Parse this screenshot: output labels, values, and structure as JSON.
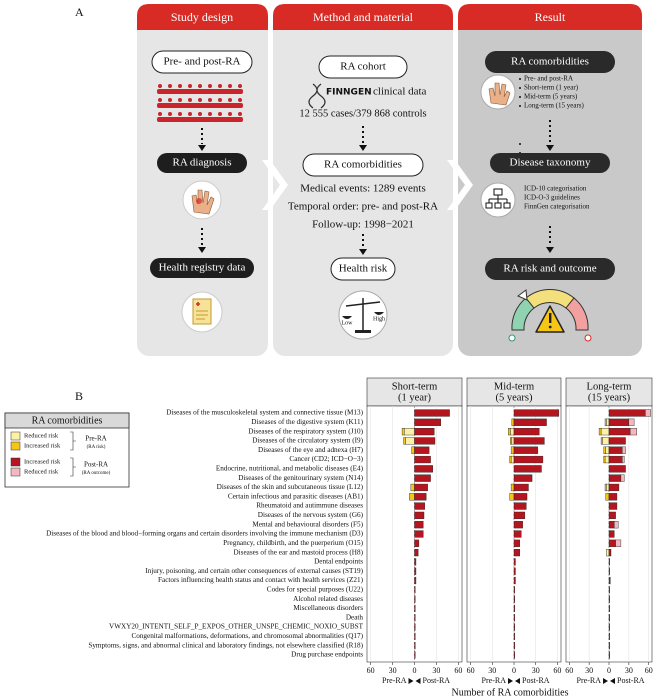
{
  "diagram": {
    "label": "A",
    "study_design": {
      "header": "Study design",
      "steps": [
        "Pre- and post-RA",
        "RA diagnosis",
        "Health registry data"
      ]
    },
    "method": {
      "header": "Method and material",
      "cohort": "RA cohort",
      "finngen": "FINNGEN",
      "source": "clinical data",
      "counts": "12 555 cases/379 868 controls",
      "comorbidities": "RA comorbidities",
      "details": [
        "Medical events: 1289 events",
        "Temporal order: pre- and post-RA",
        "Follow-up: 1998−2021"
      ],
      "risk": "Health risk",
      "scale": [
        "Low",
        "High"
      ]
    },
    "result": {
      "header": "Result",
      "comorbidities": "RA comorbidities",
      "periods": [
        "Pre- and post-RA",
        "Short-term (1 year)",
        "Mid-term (5 years)",
        "Long-term (15 years)"
      ],
      "taxonomy": "Disease taxonomy",
      "sources": [
        "ICD-10 categorisation",
        "ICD-O-3 guidelines",
        "FinnGen categorisation"
      ],
      "outcome": "RA risk and outcome"
    }
  },
  "chart_data": {
    "type": "bar",
    "label": "B",
    "orientation": "horizontal",
    "xlabel": "Number of RA comorbidities",
    "direction_labels": [
      "Pre-RA",
      "Post-RA"
    ],
    "xlim": [
      -65,
      65
    ],
    "xticks": [
      {
        "value": -60,
        "label": "60"
      },
      {
        "value": -30,
        "label": "30"
      },
      0,
      30,
      60
    ],
    "grid": true,
    "categories": [
      "Diseases of the musculoskeletal system and connective tissue (M13)",
      "Diseases of the digestive system (K11)",
      "Diseases of the respiratory system (J10)",
      "Diseases of the circulatory system (I9)",
      "Diseases of the eye and adnexa (H7)",
      "Cancer (CD2; ICD−O−3)",
      "Endocrine, nutritional, and metabolic diseases (E4)",
      "Diseases of the genitourinary system (N14)",
      "Diseases of the skin and subcutaneous tissue (L12)",
      "Certain infectious and parasitic diseases (AB1)",
      "Rheumatoid and autimmune diseases",
      "Diseases of the nervous system (G6)",
      "Mental and behavioural disorders (F5)",
      "Diseases of the blood and blood−forming organs and certain disorders involving the immune mechanism (D3)",
      "Pregnancy, childbirth, and the puerperium (O15)",
      "Diseases of the ear and mastoid process (H8)",
      "Dental endpoints",
      "Injury, poisoning, and certain other consequences of external causes (ST19)",
      "Factors influencing health status and contact with health services (Z21)",
      "Codes for special purposes (U22)",
      "Alcohol related diseases",
      "Miscellaneous disorders",
      "Death",
      "VWXY20_INTENTI_SELF_P_EXPOS_OTHER_UNSPE_CHEMIC_NOXIO_SUBST",
      "Congenital malformations, deformations, and chromosomal abnormalities (Q17)",
      "Symptoms, signs, and abnormal clinical and laboratory findings, not elsewhere classified (R18)",
      "Drug purchase endpoints"
    ],
    "legend": {
      "title": "RA comorbidities",
      "groups": [
        {
          "name": "Pre-RA",
          "note": "(RA risk)"
        },
        {
          "name": "Post-RA",
          "note": "(RA outcome)"
        }
      ]
    },
    "series": [
      {
        "name": "Reduced risk",
        "group": 0,
        "color": "#fdf0a8"
      },
      {
        "name": "Increased risk",
        "group": 0,
        "color": "#f5c518"
      },
      {
        "name": "Increased risk",
        "group": 1,
        "color": "#b5151e"
      },
      {
        "name": "Reduced risk",
        "group": 1,
        "color": "#f2b8c0"
      }
    ],
    "facets": [
      {
        "title": "Short-term",
        "subtitle": "(1 year)",
        "series_values": [
          [
            0,
            0,
            -14,
            -12,
            0,
            0,
            0,
            0,
            0,
            0,
            0,
            0,
            0,
            0,
            0,
            0,
            0,
            0,
            0,
            0,
            0,
            0,
            0,
            0,
            0,
            0,
            0
          ],
          [
            0,
            0,
            -3,
            -3,
            -4,
            0,
            0,
            0,
            -5,
            -7,
            0,
            0,
            0,
            0,
            0,
            0,
            0,
            0,
            0,
            0,
            0,
            0,
            0,
            0,
            0,
            0,
            0
          ],
          [
            48,
            36,
            27,
            28,
            20,
            22,
            25,
            22,
            18,
            16,
            14,
            13,
            12,
            12,
            6,
            5,
            2,
            2,
            2,
            1,
            1,
            1,
            1,
            1,
            1,
            1,
            1
          ],
          [
            0,
            0,
            0,
            0,
            0,
            0,
            0,
            0,
            0,
            0,
            0,
            0,
            0,
            0,
            0,
            0,
            0,
            0,
            0,
            0,
            0,
            0,
            0,
            0,
            0,
            0,
            0
          ]
        ]
      },
      {
        "title": "Mid-term",
        "subtitle": "(5 years)",
        "series_values": [
          [
            0,
            0,
            -5,
            -3,
            0,
            -4,
            0,
            0,
            0,
            0,
            0,
            0,
            0,
            0,
            0,
            0,
            0,
            0,
            0,
            0,
            0,
            0,
            0,
            0,
            0,
            0,
            0
          ],
          [
            0,
            -3,
            -3,
            -2,
            -4,
            -2,
            0,
            0,
            -4,
            -6,
            0,
            0,
            0,
            0,
            0,
            0,
            0,
            0,
            0,
            0,
            0,
            0,
            0,
            0,
            0,
            0,
            0
          ],
          [
            62,
            45,
            35,
            42,
            33,
            40,
            38,
            25,
            20,
            18,
            17,
            15,
            12,
            10,
            8,
            8,
            2,
            2,
            2,
            1,
            1,
            1,
            1,
            1,
            1,
            1,
            1
          ],
          [
            0,
            0,
            0,
            0,
            0,
            0,
            0,
            0,
            0,
            0,
            0,
            0,
            0,
            0,
            0,
            0,
            0,
            0,
            0,
            0,
            0,
            0,
            0,
            0,
            0,
            0,
            0
          ]
        ]
      },
      {
        "title": "Long-term",
        "subtitle": "(15 years)",
        "series_values": [
          [
            0,
            -4,
            -12,
            -10,
            -5,
            -6,
            0,
            0,
            -4,
            0,
            0,
            0,
            0,
            0,
            0,
            -4,
            0,
            0,
            0,
            0,
            0,
            0,
            0,
            0,
            0,
            0,
            0
          ],
          [
            0,
            -2,
            -3,
            -2,
            -3,
            -2,
            0,
            0,
            -2,
            -5,
            0,
            0,
            0,
            0,
            0,
            0,
            0,
            0,
            0,
            0,
            0,
            0,
            0,
            0,
            0,
            0,
            0
          ],
          [
            55,
            30,
            32,
            25,
            20,
            20,
            25,
            18,
            15,
            12,
            12,
            10,
            8,
            8,
            10,
            3,
            1,
            1,
            2,
            1,
            1,
            1,
            1,
            1,
            1,
            1,
            1
          ],
          [
            8,
            8,
            10,
            0,
            5,
            3,
            0,
            5,
            0,
            0,
            0,
            0,
            6,
            0,
            8,
            0,
            0,
            0,
            0,
            0,
            0,
            0,
            0,
            0,
            0,
            0,
            0
          ]
        ]
      }
    ]
  }
}
